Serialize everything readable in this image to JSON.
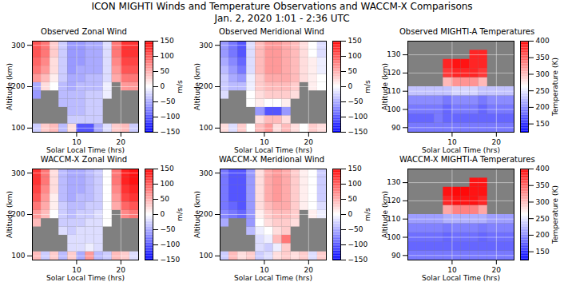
{
  "title": "ICON MIGHTI Winds and Temperature Observations and WACCM-X Comparisons",
  "subtitle": "Jan. 2, 2020 1:01 - 2:36 UTC",
  "chart_data": [
    {
      "type": "heatmap",
      "title": "Observed Zonal Wind",
      "x_label": "Solar Local Time (hrs)",
      "y_label": "Altitude (km)",
      "x": [
        1,
        3,
        5,
        7,
        9,
        11,
        13,
        15,
        17,
        19,
        21,
        23
      ],
      "y": [
        100,
        120,
        140,
        160,
        180,
        200,
        220,
        240,
        260,
        280,
        300
      ],
      "values": [
        [
          -30,
          30,
          40,
          -40,
          20,
          -100,
          -100,
          -50,
          -20,
          30,
          40,
          -30
        ],
        [
          null,
          null,
          null,
          null,
          -30,
          -30,
          -30,
          -30,
          null,
          null,
          null,
          null
        ],
        [
          null,
          null,
          null,
          null,
          -40,
          -40,
          -30,
          -30,
          null,
          null,
          null,
          null
        ],
        [
          null,
          null,
          null,
          -40,
          -40,
          -40,
          -30,
          -30,
          null,
          null,
          null,
          null
        ],
        [
          -60,
          null,
          null,
          -40,
          -40,
          -40,
          -30,
          -30,
          -10,
          null,
          null,
          null
        ],
        [
          -50,
          20,
          0,
          -40,
          -50,
          -40,
          -40,
          -40,
          -10,
          null,
          60,
          60
        ],
        [
          60,
          40,
          10,
          -30,
          -50,
          -50,
          -40,
          -40,
          -20,
          50,
          80,
          80
        ],
        [
          80,
          60,
          20,
          -30,
          -60,
          -50,
          -50,
          -50,
          -20,
          60,
          100,
          100
        ],
        [
          90,
          70,
          20,
          -30,
          -60,
          -60,
          -50,
          -50,
          -20,
          70,
          110,
          110
        ],
        [
          100,
          80,
          30,
          -30,
          -60,
          -60,
          -50,
          -50,
          -20,
          80,
          120,
          120
        ],
        [
          100,
          80,
          30,
          -30,
          -60,
          -60,
          -50,
          -50,
          -20,
          80,
          120,
          120
        ]
      ],
      "xlim": [
        0,
        24
      ],
      "xticks": [
        10,
        20
      ],
      "ylim": [
        90,
        310
      ],
      "yticks": [
        100,
        200,
        300
      ],
      "grid": true,
      "colorbar": {
        "label": "m/s",
        "range": [
          -150,
          150
        ],
        "ticks": [
          -150,
          -100,
          -50,
          0,
          50,
          100,
          150
        ]
      }
    },
    {
      "type": "heatmap",
      "title": "Observed Meridional Wind",
      "x_label": "Solar Local Time (hrs)",
      "y_label": "Altitude (km)",
      "x": [
        1,
        3,
        5,
        7,
        9,
        11,
        13,
        15,
        17,
        19,
        21,
        23
      ],
      "y": [
        100,
        120,
        140,
        160,
        180,
        200,
        220,
        240,
        260,
        280,
        300
      ],
      "values": [
        [
          20,
          -20,
          30,
          0,
          40,
          60,
          20,
          40,
          20,
          0,
          30,
          20
        ],
        [
          null,
          null,
          null,
          null,
          20,
          40,
          40,
          20,
          null,
          null,
          null,
          null
        ],
        [
          null,
          null,
          null,
          null,
          -60,
          -100,
          -100,
          -60,
          null,
          null,
          null,
          null
        ],
        [
          null,
          null,
          null,
          0,
          10,
          0,
          0,
          10,
          null,
          null,
          null,
          null
        ],
        [
          -20,
          null,
          null,
          0,
          20,
          30,
          30,
          30,
          20,
          null,
          null,
          null
        ],
        [
          -30,
          -40,
          -40,
          -10,
          30,
          40,
          40,
          40,
          30,
          null,
          10,
          0
        ],
        [
          -30,
          -50,
          -60,
          -10,
          30,
          50,
          50,
          50,
          40,
          20,
          10,
          0
        ],
        [
          -40,
          -60,
          -80,
          -20,
          40,
          60,
          60,
          50,
          40,
          20,
          10,
          -10
        ],
        [
          -50,
          -70,
          -90,
          -20,
          40,
          60,
          60,
          50,
          40,
          20,
          10,
          -10
        ],
        [
          -60,
          -80,
          -100,
          -20,
          40,
          60,
          60,
          50,
          40,
          20,
          0,
          -20
        ],
        [
          -60,
          -80,
          -100,
          -20,
          40,
          60,
          60,
          50,
          40,
          20,
          0,
          -20
        ]
      ],
      "xlim": [
        0,
        24
      ],
      "xticks": [
        10,
        20
      ],
      "ylim": [
        90,
        310
      ],
      "yticks": [
        100,
        200,
        300
      ],
      "grid": true,
      "colorbar": {
        "label": "m/s",
        "range": [
          -150,
          150
        ],
        "ticks": [
          -150,
          -100,
          -50,
          0,
          50,
          100,
          150
        ]
      }
    },
    {
      "type": "heatmap",
      "title": "Observed MIGHTI-A Temperatures",
      "x_label": "Solar Local Time (hrs)",
      "y_label": "Altitude (km)",
      "x": [
        1,
        3,
        5,
        7,
        9,
        11,
        13,
        15,
        17,
        19,
        21,
        23
      ],
      "y": [
        90,
        95,
        100,
        105,
        110,
        115,
        120,
        125,
        130,
        135
      ],
      "values": [
        [
          190,
          190,
          190,
          190,
          190,
          190,
          190,
          190,
          190,
          190,
          190,
          190
        ],
        [
          180,
          180,
          180,
          190,
          180,
          180,
          180,
          180,
          180,
          180,
          180,
          180
        ],
        [
          190,
          190,
          190,
          190,
          180,
          190,
          190,
          190,
          180,
          190,
          190,
          190
        ],
        [
          200,
          200,
          200,
          200,
          190,
          200,
          200,
          200,
          190,
          200,
          200,
          200
        ],
        [
          230,
          230,
          230,
          230,
          230,
          240,
          240,
          240,
          230,
          230,
          230,
          230
        ],
        [
          null,
          null,
          null,
          null,
          300,
          320,
          320,
          320,
          300,
          null,
          null,
          null
        ],
        [
          null,
          null,
          null,
          null,
          370,
          380,
          380,
          380,
          370,
          null,
          null,
          null
        ],
        [
          null,
          null,
          null,
          null,
          380,
          390,
          390,
          380,
          380,
          null,
          null,
          null
        ],
        [
          null,
          null,
          null,
          null,
          null,
          null,
          null,
          380,
          380,
          null,
          null,
          null
        ],
        [
          null,
          null,
          null,
          null,
          null,
          null,
          null,
          null,
          null,
          null,
          null,
          null
        ]
      ],
      "xlim": [
        0,
        24
      ],
      "xticks": [
        10,
        20
      ],
      "ylim": [
        87.5,
        137.5
      ],
      "yticks": [
        90,
        100,
        110,
        120,
        130
      ],
      "grid": true,
      "colorbar": {
        "label": "Temperature (K)",
        "range": [
          125,
          400
        ],
        "ticks": [
          150,
          200,
          250,
          300,
          350,
          400
        ]
      }
    },
    {
      "type": "heatmap",
      "title": "WACCM-X Zonal Wind",
      "x_label": "Solar Local Time (hrs)",
      "y_label": "Altitude (km)",
      "x": [
        1,
        3,
        5,
        7,
        9,
        11,
        13,
        15,
        17,
        19,
        21,
        23
      ],
      "y": [
        100,
        120,
        140,
        160,
        180,
        200,
        220,
        240,
        260,
        280,
        300
      ],
      "values": [
        [
          40,
          -30,
          30,
          -40,
          30,
          -50,
          60,
          -40,
          -30,
          40,
          30,
          -20
        ],
        [
          null,
          null,
          null,
          null,
          -20,
          -20,
          -10,
          -20,
          null,
          null,
          null,
          null
        ],
        [
          null,
          null,
          null,
          null,
          -20,
          -20,
          -20,
          -20,
          null,
          null,
          null,
          null
        ],
        [
          null,
          null,
          null,
          -20,
          -30,
          -20,
          -20,
          -20,
          null,
          null,
          null,
          null
        ],
        [
          40,
          null,
          null,
          -30,
          -30,
          -30,
          -20,
          -20,
          0,
          null,
          null,
          null
        ],
        [
          60,
          40,
          0,
          -30,
          -40,
          -30,
          -30,
          -20,
          0,
          null,
          70,
          80
        ],
        [
          80,
          50,
          10,
          -30,
          -40,
          -40,
          -30,
          -30,
          0,
          50,
          90,
          100
        ],
        [
          100,
          60,
          10,
          -40,
          -50,
          -40,
          -40,
          -30,
          0,
          60,
          110,
          120
        ],
        [
          110,
          70,
          20,
          -40,
          -50,
          -50,
          -40,
          -30,
          0,
          70,
          120,
          130
        ],
        [
          120,
          80,
          20,
          -40,
          -50,
          -50,
          -40,
          -30,
          0,
          80,
          130,
          140
        ],
        [
          120,
          80,
          20,
          -40,
          -50,
          -50,
          -40,
          -30,
          0,
          80,
          130,
          140
        ]
      ],
      "xlim": [
        0,
        24
      ],
      "xticks": [
        10,
        20
      ],
      "ylim": [
        90,
        310
      ],
      "yticks": [
        100,
        200,
        300
      ],
      "grid": true,
      "colorbar": {
        "label": "m/s",
        "range": [
          -150,
          150
        ],
        "ticks": [
          -150,
          -100,
          -50,
          0,
          50,
          100,
          150
        ]
      }
    },
    {
      "type": "heatmap",
      "title": "WACCM-X Meridional Wind",
      "x_label": "Solar Local Time (hrs)",
      "y_label": "Altitude (km)",
      "x": [
        1,
        3,
        5,
        7,
        9,
        11,
        13,
        15,
        17,
        19,
        21,
        23
      ],
      "y": [
        100,
        120,
        140,
        160,
        180,
        200,
        220,
        240,
        260,
        280,
        300
      ],
      "values": [
        [
          -30,
          40,
          20,
          30,
          -30,
          -20,
          20,
          30,
          20,
          30,
          -20,
          30
        ],
        [
          null,
          null,
          null,
          null,
          -20,
          -30,
          -10,
          30,
          null,
          null,
          null,
          null
        ],
        [
          null,
          null,
          null,
          null,
          -20,
          -10,
          40,
          80,
          null,
          null,
          null,
          null
        ],
        [
          null,
          null,
          null,
          -40,
          -10,
          0,
          20,
          30,
          null,
          null,
          null,
          null
        ],
        [
          -50,
          null,
          null,
          -60,
          0,
          20,
          30,
          30,
          20,
          null,
          null,
          null
        ],
        [
          -70,
          -80,
          -90,
          -60,
          10,
          30,
          40,
          40,
          30,
          null,
          10,
          -10
        ],
        [
          -80,
          -90,
          -100,
          -60,
          20,
          40,
          50,
          50,
          30,
          10,
          0,
          -20
        ],
        [
          -80,
          -100,
          -100,
          -60,
          20,
          50,
          60,
          50,
          30,
          10,
          0,
          -30
        ],
        [
          -80,
          -100,
          -100,
          -60,
          20,
          50,
          60,
          50,
          30,
          10,
          0,
          -30
        ],
        [
          -80,
          -100,
          -100,
          -60,
          20,
          50,
          60,
          50,
          30,
          10,
          0,
          -30
        ],
        [
          -80,
          -100,
          -100,
          -60,
          20,
          50,
          60,
          50,
          30,
          10,
          0,
          -30
        ]
      ],
      "xlim": [
        0,
        24
      ],
      "xticks": [
        10,
        20
      ],
      "ylim": [
        90,
        310
      ],
      "yticks": [
        100,
        200,
        300
      ],
      "grid": true,
      "colorbar": {
        "label": "m/s",
        "range": [
          -150,
          150
        ],
        "ticks": [
          -150,
          -100,
          -50,
          0,
          50,
          100,
          150
        ]
      }
    },
    {
      "type": "heatmap",
      "title": "WACCM-X MIGHTI-A Temperatures",
      "x_label": "Solar Local Time (hrs)",
      "y_label": "Altitude (km)",
      "x": [
        1,
        3,
        5,
        7,
        9,
        11,
        13,
        15,
        17,
        19,
        21,
        23
      ],
      "y": [
        90,
        95,
        100,
        105,
        110,
        115,
        120,
        125,
        130,
        135
      ],
      "values": [
        [
          190,
          190,
          190,
          190,
          190,
          190,
          190,
          190,
          190,
          190,
          190,
          190
        ],
        [
          180,
          180,
          180,
          180,
          180,
          180,
          180,
          180,
          180,
          180,
          180,
          180
        ],
        [
          185,
          185,
          185,
          185,
          180,
          185,
          185,
          185,
          180,
          185,
          185,
          185
        ],
        [
          195,
          195,
          195,
          195,
          190,
          195,
          195,
          195,
          190,
          195,
          195,
          195
        ],
        [
          210,
          210,
          210,
          210,
          220,
          220,
          220,
          220,
          220,
          210,
          210,
          210
        ],
        [
          null,
          null,
          null,
          null,
          310,
          330,
          330,
          330,
          310,
          null,
          null,
          null
        ],
        [
          null,
          null,
          null,
          null,
          380,
          390,
          390,
          390,
          380,
          null,
          null,
          null
        ],
        [
          null,
          null,
          null,
          null,
          390,
          395,
          395,
          390,
          390,
          null,
          null,
          null
        ],
        [
          null,
          null,
          null,
          null,
          null,
          null,
          null,
          390,
          390,
          null,
          null,
          null
        ],
        [
          null,
          null,
          null,
          null,
          null,
          null,
          null,
          null,
          null,
          null,
          null,
          null
        ]
      ],
      "xlim": [
        0,
        24
      ],
      "xticks": [
        10,
        20
      ],
      "ylim": [
        87.5,
        137.5
      ],
      "yticks": [
        90,
        100,
        110,
        120,
        130
      ],
      "grid": true,
      "colorbar": {
        "label": "Temperature (K)",
        "range": [
          125,
          400
        ],
        "ticks": [
          150,
          200,
          250,
          300,
          350,
          400
        ]
      }
    }
  ]
}
